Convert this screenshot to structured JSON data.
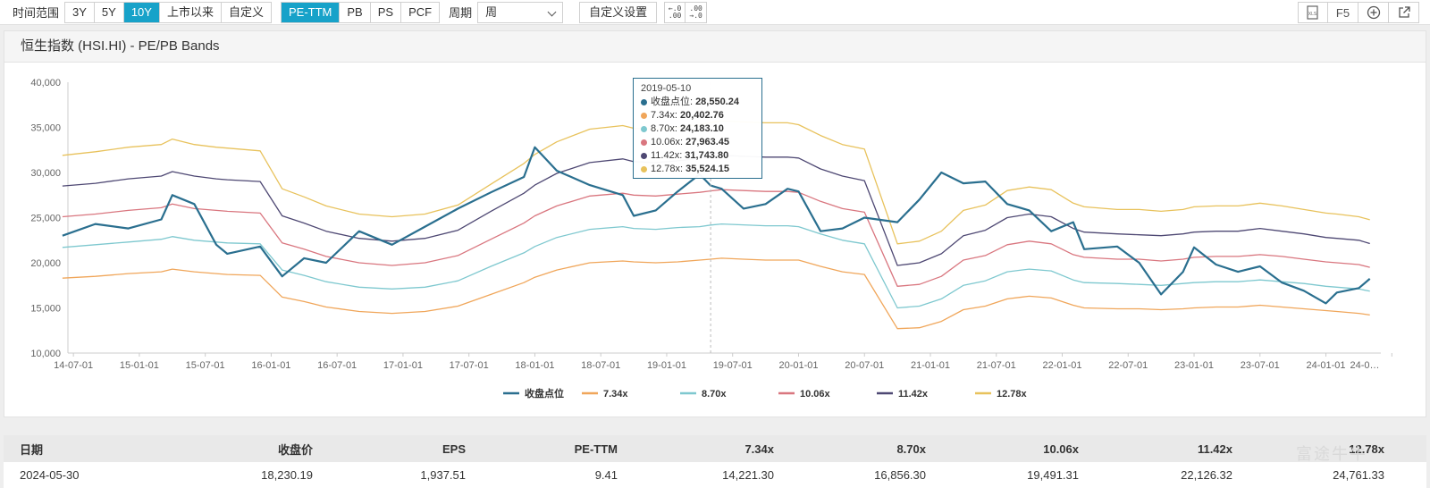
{
  "toolbar": {
    "range_label": "时间范围",
    "ranges": [
      "3Y",
      "5Y",
      "10Y",
      "上市以来",
      "自定义"
    ],
    "active_range": "10Y",
    "metrics": [
      "PE-TTM",
      "PB",
      "PS",
      "PCF"
    ],
    "active_metric": "PE-TTM",
    "period_label": "周期",
    "period_value": "周",
    "custom_settings": "自定义设置",
    "decimal_icon_top": "←.0",
    "decimal_icon_bottom": ".00",
    "decimal_icon2_top": ".00",
    "decimal_icon2_bottom": "→.0",
    "f5_label": "F5"
  },
  "chart_title": "恒生指数 (HSI.HI) - PE/PB Bands",
  "tooltip": {
    "date": "2019-05-10",
    "rows": [
      {
        "label": "收盘点位:",
        "value": "28,550.24",
        "color": "#2a6f8f"
      },
      {
        "label": "7.34x:",
        "value": "20,402.76",
        "color": "#f0a65a"
      },
      {
        "label": "8.70x:",
        "value": "24,183.10",
        "color": "#7ec8cf"
      },
      {
        "label": "10.06x:",
        "value": "27,963.45",
        "color": "#d9767f"
      },
      {
        "label": "11.42x:",
        "value": "31,743.80",
        "color": "#4e4873"
      },
      {
        "label": "12.78x:",
        "value": "35,524.15",
        "color": "#e8c25c"
      }
    ]
  },
  "chart_data": {
    "type": "line",
    "x_tick_labels": [
      "14-07-01",
      "15-01-01",
      "15-07-01",
      "16-01-01",
      "16-07-01",
      "17-01-01",
      "17-07-01",
      "18-01-01",
      "18-07-01",
      "19-01-01",
      "19-07-01",
      "20-01-01",
      "20-07-01",
      "21-01-01",
      "21-07-01",
      "22-01-01",
      "22-07-01",
      "23-01-01",
      "23-07-01",
      "24-01-01",
      "24-0…"
    ],
    "y_tick_labels": [
      "40,000",
      "35,000",
      "30,000",
      "25,000",
      "20,000",
      "15,000",
      "10,000"
    ],
    "ylim": [
      10000,
      40000
    ],
    "grid": false,
    "legend_position": "bottom",
    "x": [
      "2014-06",
      "2014-09",
      "2014-12",
      "2015-03",
      "2015-04",
      "2015-06",
      "2015-08",
      "2015-09",
      "2015-12",
      "2016-02",
      "2016-04",
      "2016-06",
      "2016-09",
      "2016-12",
      "2017-03",
      "2017-06",
      "2017-09",
      "2017-12",
      "2018-01",
      "2018-03",
      "2018-06",
      "2018-09",
      "2018-10",
      "2018-12",
      "2019-02",
      "2019-04",
      "2019-05",
      "2019-06",
      "2019-08",
      "2019-10",
      "2019-12",
      "2020-01",
      "2020-03",
      "2020-05",
      "2020-07",
      "2020-10",
      "2020-12",
      "2021-02",
      "2021-04",
      "2021-06",
      "2021-08",
      "2021-10",
      "2021-12",
      "2022-02",
      "2022-03",
      "2022-06",
      "2022-08",
      "2022-10",
      "2022-12",
      "2023-01",
      "2023-03",
      "2023-05",
      "2023-07",
      "2023-09",
      "2023-11",
      "2024-01",
      "2024-02",
      "2024-04",
      "2024-05"
    ],
    "series": [
      {
        "name": "收盘点位",
        "color": "#2a6f8f",
        "values": [
          23000,
          24300,
          23800,
          24800,
          27500,
          26500,
          22000,
          21000,
          21800,
          18500,
          20500,
          20000,
          23500,
          22000,
          24000,
          26000,
          27800,
          29500,
          32800,
          30200,
          28600,
          27500,
          25200,
          25800,
          27900,
          29800,
          28550,
          28200,
          26000,
          26500,
          28200,
          27900,
          23500,
          23800,
          25000,
          24500,
          27000,
          30000,
          28800,
          29000,
          26500,
          25800,
          23500,
          24500,
          21500,
          21800,
          20000,
          16500,
          19000,
          21700,
          19800,
          19000,
          19600,
          17800,
          16900,
          15500,
          16700,
          17200,
          18230
        ]
      },
      {
        "name": "7.34x",
        "color": "#f0a65a",
        "values": [
          18300,
          18500,
          18800,
          19000,
          19300,
          19000,
          18800,
          18700,
          18600,
          16200,
          15700,
          15100,
          14600,
          14400,
          14600,
          15200,
          16500,
          17800,
          18400,
          19200,
          20000,
          20200,
          20100,
          20000,
          20100,
          20300,
          20400,
          20500,
          20400,
          20300,
          20300,
          20300,
          19600,
          19000,
          18700,
          12700,
          12800,
          13500,
          14800,
          15200,
          16000,
          16300,
          16100,
          15300,
          15000,
          14900,
          14900,
          14800,
          14900,
          15000,
          15100,
          15100,
          15300,
          15100,
          14900,
          14700,
          14600,
          14400,
          14221
        ]
      },
      {
        "name": "8.70x",
        "color": "#7ec8cf",
        "values": [
          21700,
          22000,
          22300,
          22600,
          22900,
          22500,
          22300,
          22200,
          22100,
          19200,
          18600,
          17900,
          17300,
          17100,
          17300,
          18000,
          19600,
          21100,
          21800,
          22800,
          23700,
          24000,
          23800,
          23700,
          23900,
          24000,
          24183,
          24300,
          24200,
          24100,
          24100,
          24000,
          23200,
          22500,
          22100,
          15000,
          15200,
          16000,
          17500,
          18000,
          19000,
          19300,
          19100,
          18100,
          17800,
          17700,
          17600,
          17500,
          17700,
          17800,
          17900,
          17900,
          18100,
          17900,
          17700,
          17400,
          17300,
          17100,
          16856
        ]
      },
      {
        "name": "10.06x",
        "color": "#d9767f",
        "values": [
          25100,
          25400,
          25800,
          26100,
          26500,
          26000,
          25800,
          25700,
          25500,
          22200,
          21500,
          20700,
          20000,
          19700,
          20000,
          20800,
          22600,
          24400,
          25200,
          26300,
          27400,
          27700,
          27500,
          27400,
          27600,
          27800,
          27963,
          28100,
          28000,
          27900,
          27900,
          27800,
          26800,
          26000,
          25600,
          17400,
          17600,
          18500,
          20300,
          20800,
          22000,
          22400,
          22100,
          20900,
          20600,
          20400,
          20400,
          20200,
          20400,
          20600,
          20700,
          20700,
          20900,
          20700,
          20400,
          20100,
          20000,
          19800,
          19491
        ]
      },
      {
        "name": "11.42x",
        "color": "#4e4873",
        "values": [
          28500,
          28800,
          29300,
          29600,
          30100,
          29600,
          29300,
          29200,
          29000,
          25200,
          24400,
          23500,
          22700,
          22400,
          22700,
          23600,
          25700,
          27700,
          28600,
          29900,
          31100,
          31500,
          31200,
          31100,
          31300,
          31600,
          31744,
          31900,
          31800,
          31700,
          31700,
          31600,
          30400,
          29600,
          29100,
          19700,
          20000,
          21000,
          23000,
          23600,
          25000,
          25400,
          25100,
          23800,
          23400,
          23200,
          23100,
          23000,
          23200,
          23400,
          23500,
          23500,
          23800,
          23500,
          23200,
          22800,
          22700,
          22500,
          22126
        ]
      },
      {
        "name": "12.78x",
        "color": "#e8c25c",
        "values": [
          31900,
          32300,
          32800,
          33100,
          33700,
          33100,
          32800,
          32700,
          32400,
          28200,
          27300,
          26300,
          25400,
          25100,
          25400,
          26400,
          28700,
          31000,
          32000,
          33400,
          34800,
          35200,
          34900,
          34800,
          35000,
          35300,
          35524,
          35700,
          35600,
          35500,
          35500,
          35300,
          34100,
          33100,
          32600,
          22100,
          22400,
          23500,
          25800,
          26400,
          28000,
          28400,
          28100,
          26600,
          26200,
          25900,
          25900,
          25700,
          25900,
          26200,
          26300,
          26300,
          26600,
          26300,
          25900,
          25500,
          25400,
          25100,
          24761
        ]
      }
    ]
  },
  "table": {
    "headers": [
      "日期",
      "收盘价",
      "EPS",
      "PE-TTM",
      "7.34x",
      "8.70x",
      "10.06x",
      "11.42x",
      "12.78x"
    ],
    "rows": [
      [
        "2024-05-30",
        "18,230.19",
        "1,937.51",
        "9.41",
        "14,221.30",
        "16,856.30",
        "19,491.31",
        "22,126.32",
        "24,761.33"
      ]
    ]
  },
  "watermark": "富途牛牛"
}
